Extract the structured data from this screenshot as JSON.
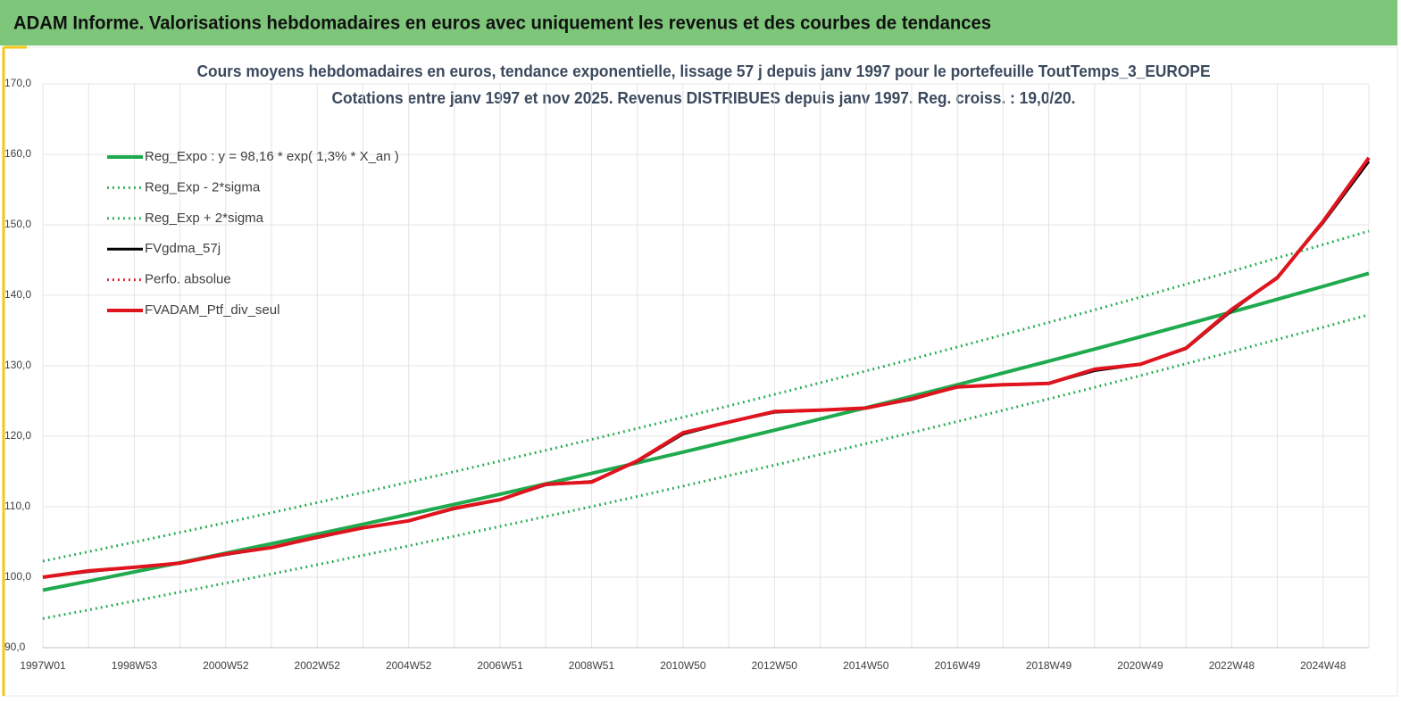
{
  "header": {
    "title": "ADAM Informe. Valorisations hebdomadaires en euros avec uniquement les revenus et des courbes de tendances"
  },
  "chart_data": {
    "type": "line",
    "title": "Cours moyens hebdomadaires  en euros, tendance exponentielle, lissage 57 j depuis janv 1997 pour le portefeuille ToutTemps_3_EUROPE",
    "subtitle": "Cotations  entre janv 1997 et nov 2025. Revenus DISTRIBUES depuis janv 1997. Reg. croiss. : 19,0/20.",
    "categories": [
      "1997W01",
      null,
      "1998W53",
      null,
      "2000W52",
      null,
      "2002W52",
      null,
      "2004W52",
      null,
      "2006W51",
      null,
      "2008W51",
      null,
      "2010W50",
      null,
      "2012W50",
      null,
      "2014W50",
      null,
      "2016W49",
      null,
      "2018W49",
      null,
      "2020W49",
      null,
      "2022W48",
      null,
      "2024W48",
      null
    ],
    "ylim": [
      90,
      170
    ],
    "yticks": [
      {
        "value": 90,
        "label": "90,0"
      },
      {
        "value": 100,
        "label": "100,0"
      },
      {
        "value": 110,
        "label": "110,0"
      },
      {
        "value": 120,
        "label": "120,0"
      },
      {
        "value": 130,
        "label": "130,0"
      },
      {
        "value": 140,
        "label": "140,0"
      },
      {
        "value": 150,
        "label": "150,0"
      },
      {
        "value": 160,
        "label": "160,0"
      },
      {
        "value": 170,
        "label": "170,0"
      }
    ],
    "grid": true,
    "legend": "top-left",
    "series": [
      {
        "name": "Reg_Expo : y = 98,16 * exp( 1,3% *  X_an )",
        "color": "#1faa4e",
        "style": "solid",
        "line_width": 4,
        "values": [
          98.16,
          99.44,
          100.75,
          102.06,
          103.4,
          104.75,
          106.12,
          107.51,
          108.92,
          110.34,
          111.79,
          113.25,
          114.73,
          116.23,
          117.75,
          119.3,
          120.86,
          122.44,
          124.04,
          125.66,
          127.31,
          128.97,
          130.66,
          132.37,
          134.1,
          135.86,
          137.63,
          139.44,
          141.26,
          143.11
        ]
      },
      {
        "name": "Reg_Exp - 2*sigma",
        "color": "#1faa4e",
        "style": "dotted",
        "line_width": 3,
        "values": [
          94.14,
          95.36,
          96.62,
          97.88,
          99.16,
          100.46,
          101.77,
          103.1,
          104.45,
          105.82,
          107.21,
          108.61,
          110.03,
          111.46,
          112.92,
          114.41,
          115.9,
          117.42,
          118.95,
          120.51,
          122.09,
          123.68,
          125.3,
          126.94,
          128.6,
          130.29,
          131.99,
          133.73,
          135.47,
          137.24
        ]
      },
      {
        "name": "Reg_Exp + 2*sigma",
        "color": "#1faa4e",
        "style": "dotted",
        "line_width": 3,
        "values": [
          102.28,
          103.62,
          104.98,
          106.35,
          107.74,
          109.15,
          110.58,
          112.03,
          113.49,
          114.97,
          116.49,
          118.01,
          119.55,
          121.11,
          122.7,
          124.31,
          125.94,
          127.58,
          129.25,
          130.94,
          132.66,
          134.39,
          136.15,
          137.93,
          139.73,
          141.57,
          143.41,
          145.3,
          147.19,
          149.12
        ]
      },
      {
        "name": "FVgdma_57j",
        "color": "#000000",
        "style": "solid",
        "line_width": 3,
        "values": [
          100.0,
          100.8,
          101.4,
          102.0,
          103.2,
          104.2,
          105.6,
          107.0,
          108.0,
          109.7,
          111.0,
          113.1,
          113.6,
          116.4,
          120.3,
          122.0,
          123.4,
          123.7,
          124.0,
          125.2,
          127.0,
          127.3,
          127.5,
          129.3,
          130.2,
          132.4,
          137.8,
          142.6,
          150.3,
          159.0
        ]
      },
      {
        "name": "Perfo. absolue",
        "color": "#e0141e",
        "style": "dotted",
        "line_width": 3,
        "values": [
          100.0,
          100.9,
          101.4,
          102.0,
          103.3,
          104.2,
          105.7,
          107.0,
          108.0,
          109.8,
          111.0,
          113.2,
          113.5,
          116.5,
          120.5,
          122.0,
          123.5,
          123.7,
          124.0,
          125.3,
          127.0,
          127.3,
          127.5,
          129.5,
          130.2,
          132.5,
          138.0,
          142.5,
          150.5,
          159.5
        ]
      },
      {
        "name": "FVADAM_Ptf_div_seul",
        "color": "#e0141e",
        "style": "solid",
        "line_width": 4,
        "values": [
          100.0,
          100.9,
          101.4,
          102.0,
          103.3,
          104.2,
          105.7,
          107.0,
          108.0,
          109.8,
          111.0,
          113.2,
          113.5,
          116.5,
          120.5,
          122.0,
          123.5,
          123.7,
          124.0,
          125.3,
          127.0,
          127.3,
          127.5,
          129.5,
          130.2,
          132.5,
          138.0,
          142.5,
          150.5,
          159.5
        ]
      }
    ]
  }
}
